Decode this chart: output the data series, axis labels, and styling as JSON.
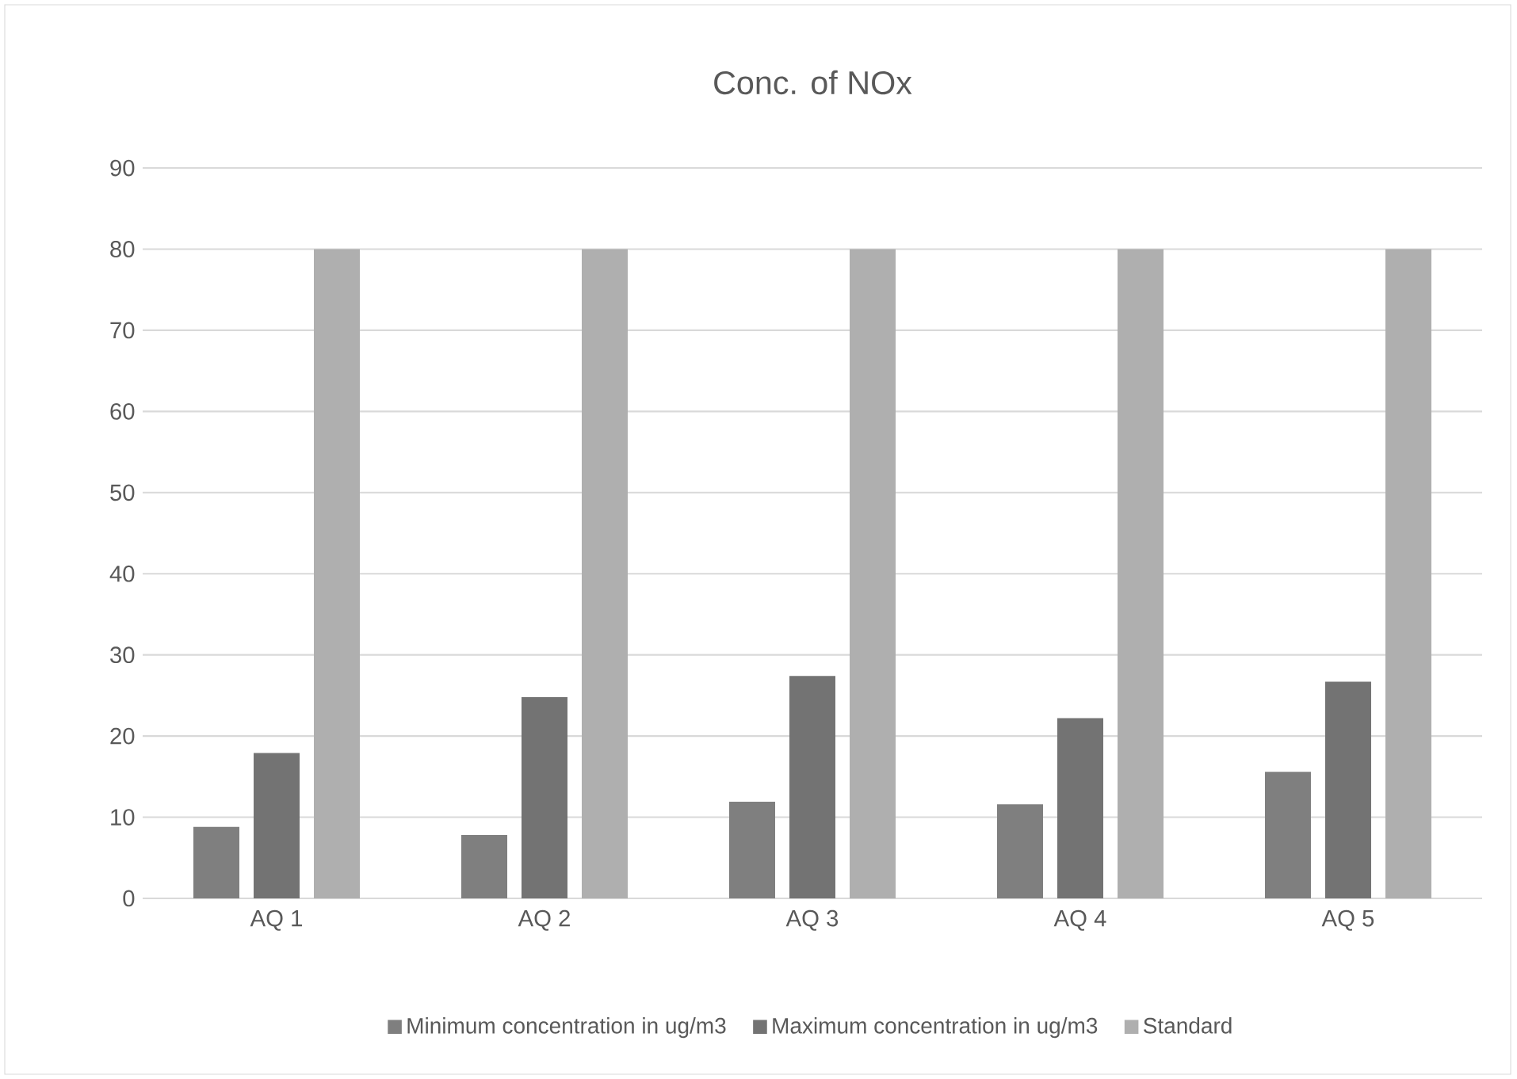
{
  "chart_data": {
    "type": "bar",
    "title": "Conc. of NOx",
    "categories": [
      "AQ 1",
      "AQ 2",
      "AQ 3",
      "AQ 4",
      "AQ 5"
    ],
    "series": [
      {
        "name": "Minimum concentration in ug/m3",
        "color": "#7f7f7f",
        "values": [
          8.8,
          7.8,
          11.9,
          11.6,
          15.6
        ]
      },
      {
        "name": "Maximum concentration in ug/m3",
        "color": "#737373",
        "values": [
          17.9,
          24.8,
          27.4,
          22.2,
          26.7
        ]
      },
      {
        "name": "Standard",
        "color": "#afafaf",
        "values": [
          80,
          80,
          80,
          80,
          80
        ]
      }
    ],
    "ylim": [
      0,
      90
    ],
    "yticks": [
      0,
      10,
      20,
      30,
      40,
      50,
      60,
      70,
      80,
      90
    ],
    "grid": "y",
    "legend": "bottom"
  }
}
